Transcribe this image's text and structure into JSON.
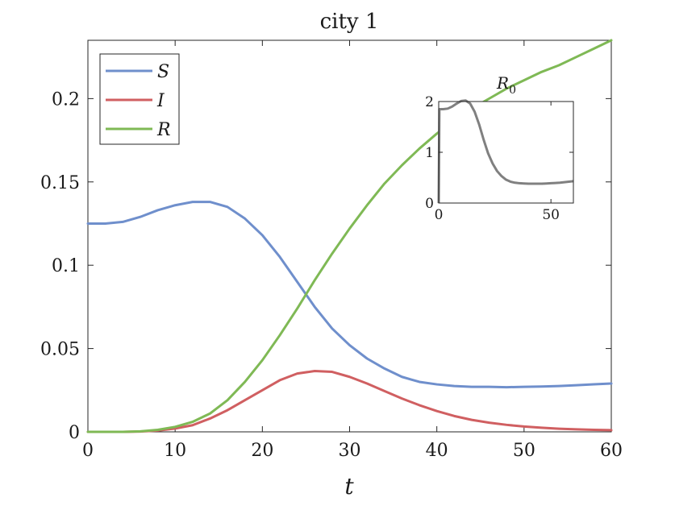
{
  "chart_data": {
    "type": "line",
    "title": "city 1",
    "xlabel": "t",
    "ylabel": "",
    "xlim": [
      0,
      60
    ],
    "ylim": [
      0,
      0.235
    ],
    "xticks": [
      0,
      10,
      20,
      30,
      40,
      50,
      60
    ],
    "xtick_labels": [
      "0",
      "10",
      "20",
      "30",
      "40",
      "50",
      "60"
    ],
    "yticks": [
      0,
      0.05,
      0.1,
      0.15,
      0.2
    ],
    "ytick_labels": [
      "0",
      "0.05",
      "0.1",
      "0.15",
      "0.2"
    ],
    "grid": false,
    "legend_position": "top-left",
    "series": [
      {
        "name": "S",
        "color": "#6f8fcc",
        "x": [
          0,
          2,
          4,
          6,
          8,
          10,
          12,
          14,
          16,
          18,
          20,
          22,
          24,
          26,
          28,
          30,
          32,
          34,
          36,
          38,
          40,
          42,
          44,
          46,
          48,
          50,
          52,
          54,
          56,
          58,
          60
        ],
        "y": [
          0.125,
          0.125,
          0.126,
          0.129,
          0.133,
          0.136,
          0.138,
          0.138,
          0.135,
          0.128,
          0.118,
          0.105,
          0.09,
          0.075,
          0.062,
          0.052,
          0.044,
          0.038,
          0.033,
          0.03,
          0.0285,
          0.0275,
          0.027,
          0.027,
          0.0268,
          0.027,
          0.0272,
          0.0275,
          0.028,
          0.0285,
          0.029
        ]
      },
      {
        "name": "I",
        "color": "#d05f61",
        "x": [
          0,
          2,
          4,
          6,
          8,
          10,
          12,
          14,
          16,
          18,
          20,
          22,
          24,
          26,
          28,
          30,
          32,
          34,
          36,
          38,
          40,
          42,
          44,
          46,
          48,
          50,
          52,
          54,
          56,
          58,
          60
        ],
        "y": [
          0,
          0,
          0,
          0.0002,
          0.0008,
          0.002,
          0.004,
          0.008,
          0.013,
          0.019,
          0.025,
          0.031,
          0.035,
          0.0365,
          0.036,
          0.033,
          0.029,
          0.0245,
          0.02,
          0.016,
          0.0125,
          0.0095,
          0.0072,
          0.0055,
          0.0042,
          0.0032,
          0.0025,
          0.0019,
          0.0015,
          0.0012,
          0.001
        ]
      },
      {
        "name": "R",
        "color": "#7fb955",
        "x": [
          0,
          2,
          4,
          6,
          8,
          10,
          12,
          14,
          16,
          18,
          20,
          22,
          24,
          26,
          28,
          30,
          32,
          34,
          36,
          38,
          40,
          42,
          44,
          46,
          48,
          50,
          52,
          54,
          56,
          58,
          60
        ],
        "y": [
          0,
          0,
          0,
          0.0003,
          0.0012,
          0.003,
          0.006,
          0.011,
          0.019,
          0.03,
          0.043,
          0.058,
          0.074,
          0.091,
          0.107,
          0.122,
          0.136,
          0.149,
          0.16,
          0.17,
          0.179,
          0.187,
          0.194,
          0.2,
          0.206,
          0.211,
          0.216,
          0.22,
          0.225,
          0.23,
          0.235
        ]
      }
    ],
    "inset": {
      "type": "line",
      "title": "R0",
      "title_main": "R",
      "title_sub": "0",
      "xlim": [
        0,
        60
      ],
      "ylim": [
        0,
        2
      ],
      "xticks": [
        0,
        50
      ],
      "xtick_labels": [
        "0",
        "50"
      ],
      "yticks": [
        0,
        1,
        2
      ],
      "ytick_labels": [
        "0",
        "1",
        "2"
      ],
      "series": [
        {
          "name": "",
          "color": "#808080",
          "x": [
            0,
            0.3,
            2,
            4,
            6,
            8,
            10,
            12,
            14,
            16,
            18,
            20,
            22,
            24,
            26,
            28,
            30,
            32,
            34,
            36,
            38,
            40,
            42,
            44,
            46,
            48,
            50,
            52,
            54,
            56,
            58,
            60
          ],
          "y": [
            0,
            1.85,
            1.85,
            1.86,
            1.9,
            1.96,
            2.01,
            2.02,
            1.96,
            1.8,
            1.55,
            1.25,
            0.98,
            0.78,
            0.63,
            0.53,
            0.46,
            0.42,
            0.4,
            0.39,
            0.385,
            0.38,
            0.38,
            0.38,
            0.38,
            0.385,
            0.39,
            0.395,
            0.4,
            0.41,
            0.42,
            0.43
          ]
        }
      ]
    }
  }
}
